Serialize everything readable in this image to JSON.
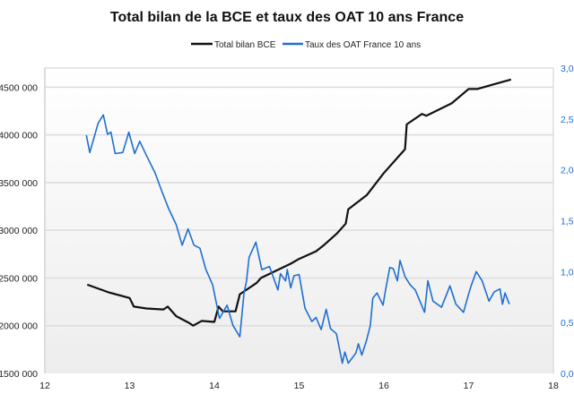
{
  "chart_data": {
    "type": "line",
    "title": "Total bilan de la BCE et taux des OAT 10 ans France",
    "legend_placement": "top",
    "grid": true,
    "x_axis": {
      "range": [
        12,
        18
      ],
      "ticks": [
        "12",
        "13",
        "14",
        "15",
        "16",
        "17",
        "18"
      ]
    },
    "y_left": {
      "range": [
        1500000,
        4700000
      ],
      "ticks": [
        "1500 000",
        "2000 000",
        "2500 000",
        "3000 000",
        "3500 000",
        "4000 000",
        "4500 000"
      ],
      "tick_values": [
        1500000,
        2000000,
        2500000,
        3000000,
        3500000,
        4000000,
        4500000
      ]
    },
    "y_right": {
      "range": [
        0,
        3
      ],
      "ticks": [
        "0,0",
        "0,5",
        "1,0",
        "1,5",
        "2,0",
        "2,5",
        "3,0"
      ],
      "tick_values": [
        0,
        0.5,
        1,
        1.5,
        2,
        2.5,
        3
      ]
    },
    "series": [
      {
        "name": "Total bilan BCE",
        "axis": "left",
        "color": "#111111",
        "x": [
          12.5,
          12.75,
          13.0,
          13.05,
          13.2,
          13.4,
          13.45,
          13.55,
          13.7,
          13.75,
          13.85,
          14.0,
          14.05,
          14.1,
          14.25,
          14.3,
          14.5,
          14.55,
          14.9,
          15.0,
          15.2,
          15.3,
          15.45,
          15.55,
          15.58,
          15.8,
          16.0,
          16.25,
          16.27,
          16.45,
          16.5,
          16.8,
          17.0,
          17.1,
          17.3,
          17.5
        ],
        "values": [
          2430000,
          2350000,
          2290000,
          2200000,
          2180000,
          2170000,
          2200000,
          2100000,
          2030000,
          2000000,
          2050000,
          2040000,
          2200000,
          2150000,
          2150000,
          2330000,
          2450000,
          2500000,
          2650000,
          2700000,
          2780000,
          2850000,
          2970000,
          3070000,
          3220000,
          3370000,
          3600000,
          3850000,
          4110000,
          4220000,
          4200000,
          4330000,
          4480000,
          4480000,
          4530000,
          4580000
        ]
      },
      {
        "name": "Taux des OAT France 10 ans",
        "axis": "right",
        "color": "#1f6fd0",
        "x": [
          12.49,
          12.53,
          12.63,
          12.69,
          12.74,
          12.78,
          12.83,
          12.92,
          12.99,
          13.06,
          13.12,
          13.2,
          13.3,
          13.38,
          13.46,
          13.55,
          13.62,
          13.69,
          13.76,
          13.83,
          13.9,
          13.98,
          14.06,
          14.15,
          14.22,
          14.3,
          14.35,
          14.38,
          14.41,
          14.49,
          14.56,
          14.65,
          14.75,
          14.78,
          14.84,
          14.86,
          14.9,
          14.94,
          15.0,
          15.07,
          15.15,
          15.2,
          15.26,
          15.32,
          15.37,
          15.44,
          15.51,
          15.54,
          15.58,
          15.67,
          15.7,
          15.74,
          15.79,
          15.84,
          15.87,
          15.92,
          15.99,
          16.02,
          16.07,
          16.11,
          16.16,
          16.19,
          16.25,
          16.31,
          16.37,
          16.48,
          16.52,
          16.58,
          16.68,
          16.78,
          16.85,
          16.94,
          17.0,
          17.03,
          17.09,
          17.16,
          17.24,
          17.3,
          17.37,
          17.4,
          17.43,
          17.48
        ],
        "values": [
          2.34,
          2.17,
          2.46,
          2.54,
          2.35,
          2.37,
          2.16,
          2.17,
          2.37,
          2.16,
          2.28,
          2.14,
          1.97,
          1.79,
          1.62,
          1.46,
          1.26,
          1.42,
          1.26,
          1.23,
          1.02,
          0.87,
          0.54,
          0.67,
          0.47,
          0.36,
          0.79,
          0.91,
          1.14,
          1.29,
          1.02,
          1.05,
          0.82,
          0.98,
          0.91,
          1.02,
          0.84,
          0.96,
          0.97,
          0.64,
          0.51,
          0.55,
          0.43,
          0.63,
          0.44,
          0.39,
          0.1,
          0.21,
          0.1,
          0.2,
          0.29,
          0.18,
          0.31,
          0.47,
          0.74,
          0.79,
          0.67,
          0.82,
          1.04,
          1.03,
          0.91,
          1.11,
          0.95,
          0.87,
          0.82,
          0.6,
          0.91,
          0.71,
          0.65,
          0.86,
          0.68,
          0.6,
          0.78,
          0.86,
          1.0,
          0.91,
          0.71,
          0.8,
          0.83,
          0.68,
          0.79,
          0.68
        ]
      }
    ]
  }
}
